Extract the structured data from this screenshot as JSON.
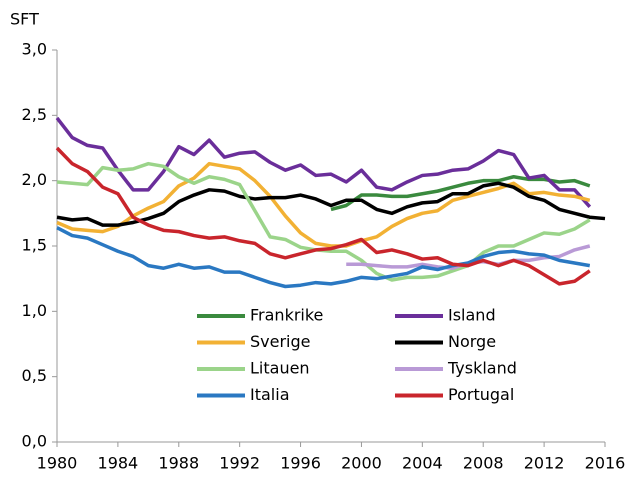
{
  "chart_data": {
    "type": "line",
    "y_label": "SFT",
    "x": [
      1980,
      1981,
      1982,
      1983,
      1984,
      1985,
      1986,
      1987,
      1988,
      1989,
      1990,
      1991,
      1992,
      1993,
      1994,
      1995,
      1996,
      1997,
      1998,
      1999,
      2000,
      2001,
      2002,
      2003,
      2004,
      2005,
      2006,
      2007,
      2008,
      2009,
      2010,
      2011,
      2012,
      2013,
      2014,
      2015,
      2016
    ],
    "xlim": [
      1980,
      2016
    ],
    "xticks": [
      1980,
      1984,
      1988,
      1992,
      1996,
      2000,
      2004,
      2008,
      2012,
      2016
    ],
    "ylim": [
      0,
      3
    ],
    "yticks": [
      {
        "value": 0,
        "label": "0,0"
      },
      {
        "value": 0.5,
        "label": "0,5"
      },
      {
        "value": 1,
        "label": "1,0"
      },
      {
        "value": 1.5,
        "label": "1,5"
      },
      {
        "value": 2,
        "label": "2,0"
      },
      {
        "value": 2.5,
        "label": "2,5"
      },
      {
        "value": 3,
        "label": "3,0"
      }
    ],
    "series": [
      {
        "name": "Frankrike",
        "color": "#3a8a3e",
        "values": [
          null,
          null,
          null,
          null,
          null,
          null,
          null,
          null,
          null,
          null,
          null,
          null,
          null,
          null,
          null,
          null,
          null,
          null,
          1.78,
          1.81,
          1.89,
          1.89,
          1.88,
          1.88,
          1.9,
          1.92,
          1.95,
          1.98,
          2.0,
          2.0,
          2.03,
          2.01,
          2.01,
          1.99,
          2.0,
          1.96,
          null
        ]
      },
      {
        "name": "Island",
        "color": "#6a2e9a",
        "values": [
          2.48,
          2.33,
          2.27,
          2.25,
          2.08,
          1.93,
          1.93,
          2.07,
          2.26,
          2.2,
          2.31,
          2.18,
          2.21,
          2.22,
          2.14,
          2.08,
          2.12,
          2.04,
          2.05,
          1.99,
          2.08,
          1.95,
          1.93,
          1.99,
          2.04,
          2.05,
          2.08,
          2.09,
          2.15,
          2.23,
          2.2,
          2.02,
          2.04,
          1.93,
          1.93,
          1.8,
          null
        ]
      },
      {
        "name": "Sverige",
        "color": "#f2b134",
        "values": [
          1.68,
          1.63,
          1.62,
          1.61,
          1.65,
          1.73,
          1.79,
          1.84,
          1.96,
          2.02,
          2.13,
          2.11,
          2.09,
          2.0,
          1.88,
          1.73,
          1.6,
          1.52,
          1.5,
          1.5,
          1.54,
          1.57,
          1.65,
          1.71,
          1.75,
          1.77,
          1.85,
          1.88,
          1.91,
          1.94,
          1.98,
          1.9,
          1.91,
          1.89,
          1.88,
          1.85,
          null
        ]
      },
      {
        "name": "Norge",
        "color": "#000000",
        "values": [
          1.72,
          1.7,
          1.71,
          1.66,
          1.66,
          1.68,
          1.71,
          1.75,
          1.84,
          1.89,
          1.93,
          1.92,
          1.88,
          1.86,
          1.87,
          1.87,
          1.89,
          1.86,
          1.81,
          1.85,
          1.85,
          1.78,
          1.75,
          1.8,
          1.83,
          1.84,
          1.9,
          1.9,
          1.96,
          1.98,
          1.95,
          1.88,
          1.85,
          1.78,
          1.75,
          1.72,
          1.71
        ]
      },
      {
        "name": "Litauen",
        "color": "#9bd48a",
        "values": [
          1.99,
          1.98,
          1.97,
          2.1,
          2.08,
          2.09,
          2.13,
          2.11,
          2.03,
          1.98,
          2.03,
          2.01,
          1.97,
          1.77,
          1.57,
          1.55,
          1.49,
          1.47,
          1.46,
          1.46,
          1.39,
          1.29,
          1.24,
          1.26,
          1.26,
          1.27,
          1.31,
          1.35,
          1.45,
          1.5,
          1.5,
          1.55,
          1.6,
          1.59,
          1.63,
          1.7,
          null
        ]
      },
      {
        "name": "Tyskland",
        "color": "#b99ad6",
        "values": [
          null,
          null,
          null,
          null,
          null,
          null,
          null,
          null,
          null,
          null,
          null,
          null,
          null,
          null,
          null,
          null,
          null,
          null,
          null,
          1.36,
          1.36,
          1.35,
          1.34,
          1.34,
          1.36,
          1.34,
          1.33,
          1.37,
          1.38,
          1.36,
          1.39,
          1.39,
          1.41,
          1.42,
          1.47,
          1.5,
          null
        ]
      },
      {
        "name": "Italia",
        "color": "#2a78c2",
        "values": [
          1.64,
          1.58,
          1.56,
          1.51,
          1.46,
          1.42,
          1.35,
          1.33,
          1.36,
          1.33,
          1.34,
          1.3,
          1.3,
          1.26,
          1.22,
          1.19,
          1.2,
          1.22,
          1.21,
          1.23,
          1.26,
          1.25,
          1.27,
          1.29,
          1.34,
          1.32,
          1.35,
          1.37,
          1.42,
          1.45,
          1.46,
          1.44,
          1.43,
          1.39,
          1.37,
          1.35,
          null
        ]
      },
      {
        "name": "Portugal",
        "color": "#c9252c",
        "values": [
          2.25,
          2.13,
          2.07,
          1.95,
          1.9,
          1.72,
          1.66,
          1.62,
          1.61,
          1.58,
          1.56,
          1.57,
          1.54,
          1.52,
          1.44,
          1.41,
          1.44,
          1.47,
          1.48,
          1.51,
          1.55,
          1.45,
          1.47,
          1.44,
          1.4,
          1.41,
          1.36,
          1.35,
          1.39,
          1.35,
          1.39,
          1.35,
          1.28,
          1.21,
          1.23,
          1.31,
          null
        ]
      }
    ]
  }
}
